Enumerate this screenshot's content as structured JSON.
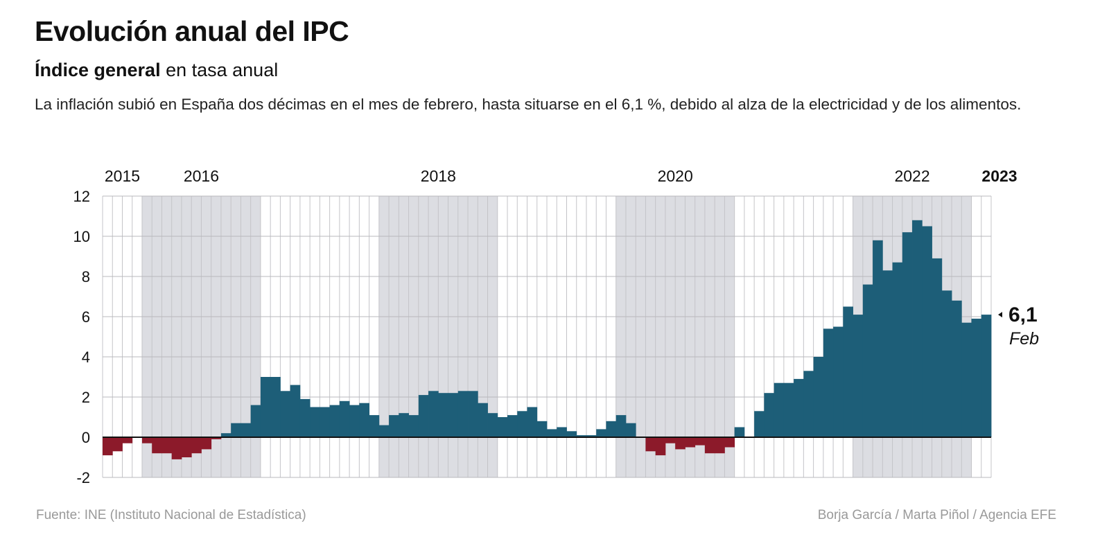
{
  "title": "Evolución anual del IPC",
  "subtitle_bold": "Índice general",
  "subtitle_rest": " en tasa anual",
  "description": "La inflación subió en España dos décimas en el mes de febrero, hasta situarse en el 6,1 %, debido al alza de la electricidad y de los alimentos.",
  "source": "Fuente: INE (Instituto Nacional de Estadística)",
  "credits": "Borja García / Marta Piñol / Agencia EFE",
  "colors": {
    "positive": "#1d5e78",
    "negative": "#8c1a2a",
    "shade": "#dcdde2"
  },
  "chart_data": {
    "type": "bar",
    "title": "Evolución anual del IPC",
    "ylim": [
      -2,
      12
    ],
    "yticks": [
      -2,
      0,
      2,
      4,
      6,
      8,
      10,
      12
    ],
    "grid": true,
    "start": "2015-09",
    "end": "2023-02",
    "year_labels": [
      {
        "label": "2015",
        "year": 2015
      },
      {
        "label": "2016",
        "year": 2016
      },
      {
        "label": "2018",
        "year": 2018
      },
      {
        "label": "2020",
        "year": 2020
      },
      {
        "label": "2022",
        "year": 2022
      },
      {
        "label": "2023",
        "year": 2023,
        "bold": true
      }
    ],
    "shaded_years": [
      2016,
      2018,
      2020,
      2022
    ],
    "values": [
      -0.9,
      -0.7,
      -0.3,
      0.0,
      -0.3,
      -0.8,
      -0.8,
      -1.1,
      -1.0,
      -0.8,
      -0.6,
      -0.1,
      0.2,
      0.7,
      0.7,
      1.6,
      3.0,
      3.0,
      2.3,
      2.6,
      1.9,
      1.5,
      1.5,
      1.6,
      1.8,
      1.6,
      1.7,
      1.1,
      0.6,
      1.1,
      1.2,
      1.1,
      2.1,
      2.3,
      2.2,
      2.2,
      2.3,
      2.3,
      1.7,
      1.2,
      1.0,
      1.1,
      1.3,
      1.5,
      0.8,
      0.4,
      0.5,
      0.3,
      0.1,
      0.1,
      0.4,
      0.8,
      1.1,
      0.7,
      0.0,
      -0.7,
      -0.9,
      -0.3,
      -0.6,
      -0.5,
      -0.4,
      -0.8,
      -0.8,
      -0.5,
      0.5,
      0.0,
      1.3,
      2.2,
      2.7,
      2.7,
      2.9,
      3.3,
      4.0,
      5.4,
      5.5,
      6.5,
      6.1,
      7.6,
      9.8,
      8.3,
      8.7,
      10.2,
      10.8,
      10.5,
      8.9,
      7.3,
      6.8,
      5.7,
      5.9,
      6.1
    ],
    "annotation": {
      "value": "6,1",
      "label": "Feb"
    }
  }
}
